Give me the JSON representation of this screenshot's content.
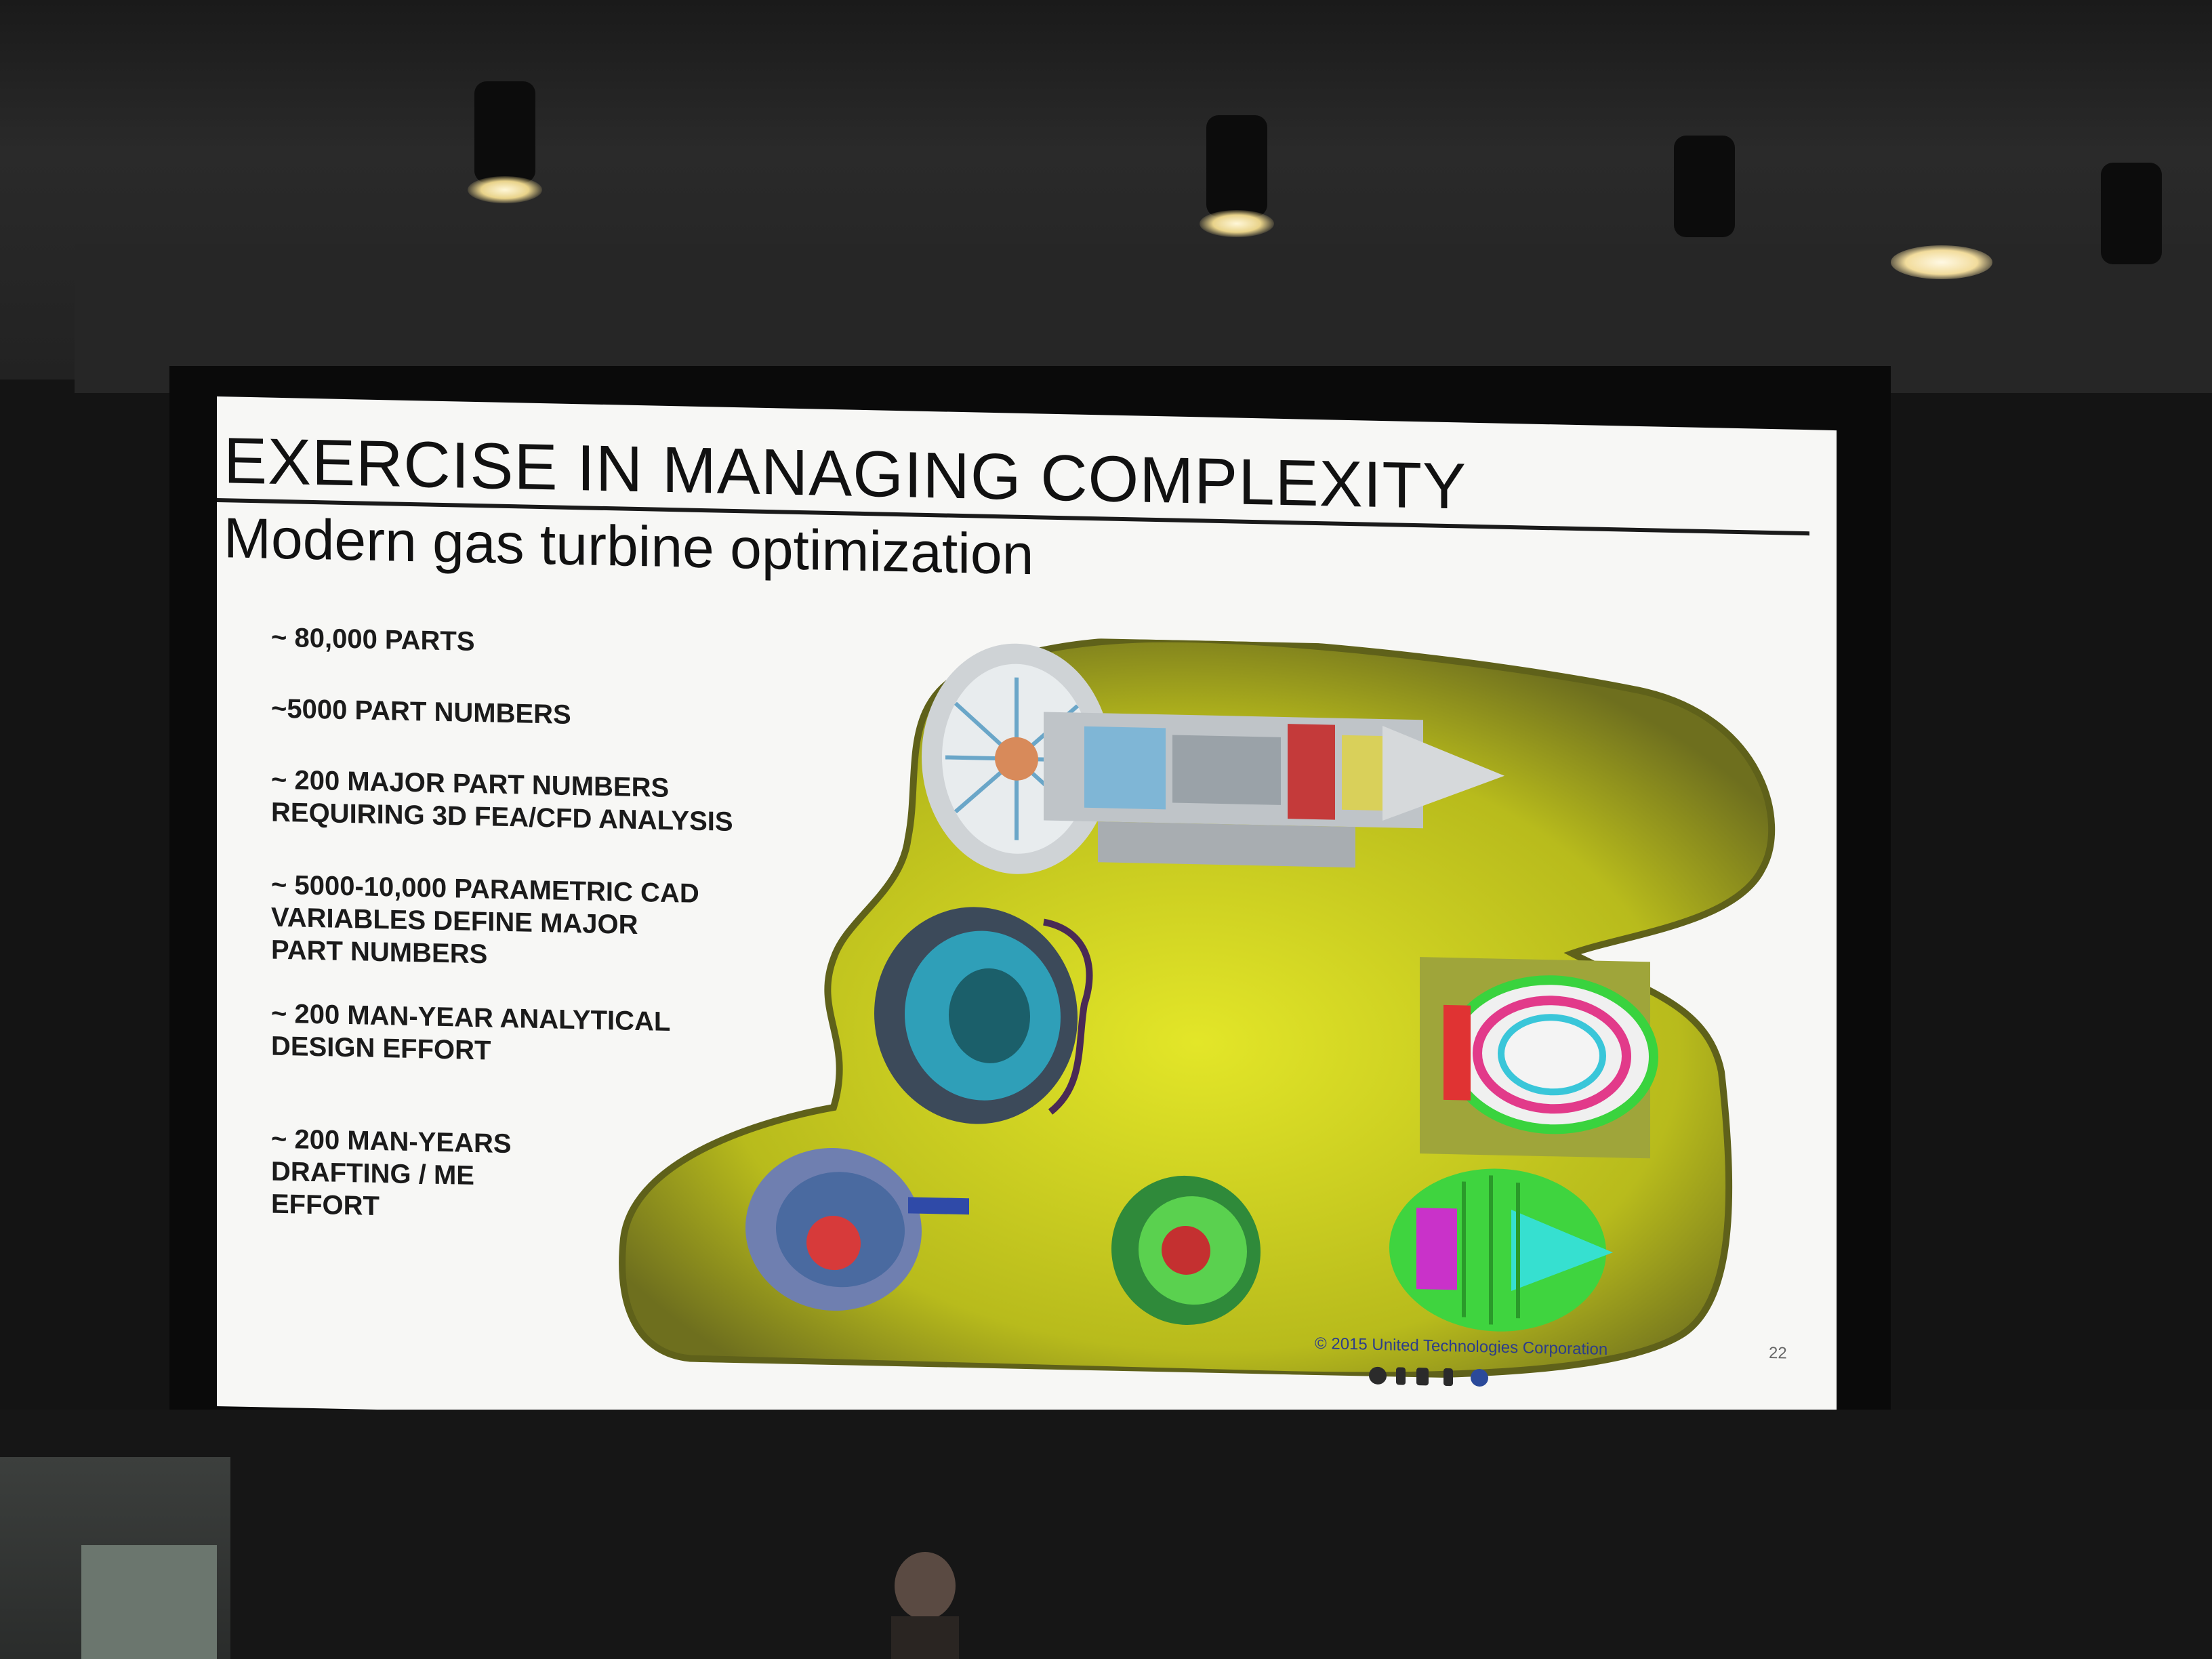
{
  "slide": {
    "title": "EXERCISE IN MANAGING COMPLEXITY",
    "subtitle": "Modern gas turbine optimization",
    "bullets": [
      "~ 80,000 PARTS",
      "~5000 PART NUMBERS",
      "~ 200 MAJOR PART NUMBERS\n   REQUIRING 3D FEA/CFD ANALYSIS",
      "~ 5000-10,000 PARAMETRIC CAD\n   VARIABLES  DEFINE MAJOR\n   PART NUMBERS",
      "~ 200 MAN-YEAR ANALYTICAL\n   DESIGN EFFORT",
      "~ 200 MAN-YEARS\n   DRAFTING / ME\n   EFFORT"
    ],
    "footer": "© 2015 United Technologies Corporation",
    "page_number": "22"
  },
  "colors": {
    "blob": "#c9cc1a",
    "blob_edge": "#7a7a20",
    "title_text": "#111111",
    "footer_text": "#2c3d8a"
  },
  "icons": [
    "turbine-cutaway-image",
    "fan-module-image",
    "compressor-rings-image",
    "turbine-rotor-image",
    "disk-module-image",
    "exhaust-cone-image",
    "playback-controls-icon"
  ]
}
